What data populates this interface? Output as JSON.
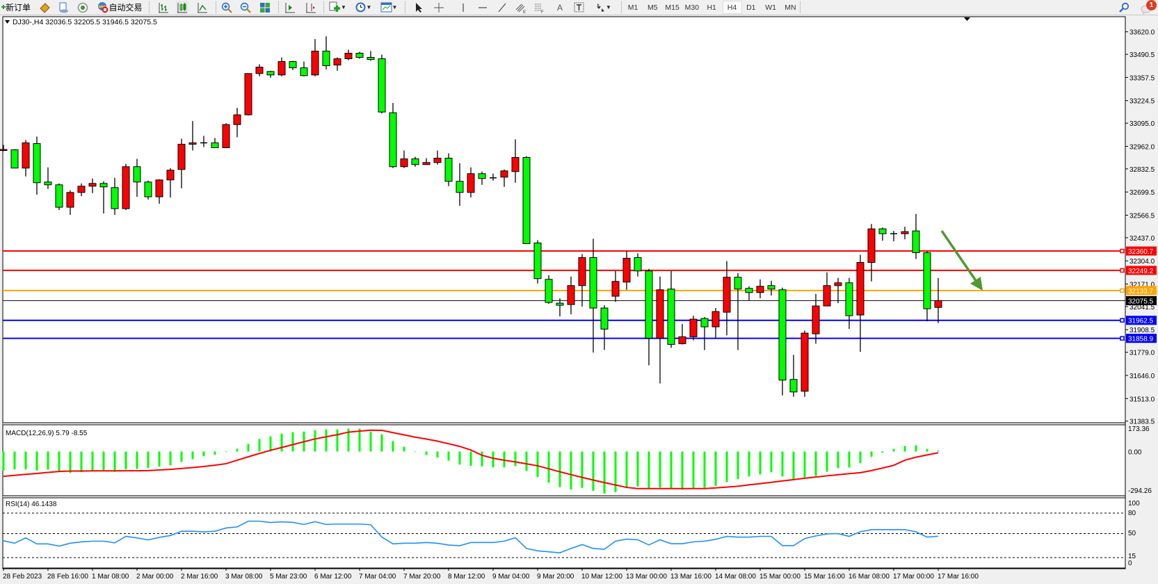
{
  "toolbar": {
    "new_order": "新订单",
    "auto_trading": "自动交易",
    "timeframes": [
      "M1",
      "M5",
      "M15",
      "M30",
      "H1",
      "H4",
      "D1",
      "W1",
      "MN"
    ],
    "selected_timeframe": "H4",
    "notification_count": "1",
    "icons": [
      "new-order-icon",
      "market-icon",
      "navigator-icon",
      "signals-icon",
      "auto-trading-icon",
      "bar-chart-icon",
      "candlestick-icon",
      "line-chart-icon",
      "zoom-in-icon",
      "zoom-out-icon",
      "tile-windows-icon",
      "auto-scroll-icon",
      "chart-shift-icon",
      "indicators-icon",
      "periods-icon",
      "templates-icon",
      "cursor-icon",
      "crosshair-icon",
      "vertical-line-icon",
      "horizontal-line-icon",
      "trendline-icon",
      "equidistant-channel-icon",
      "fibonacci-icon",
      "text-icon",
      "text-label-icon",
      "arrows-icon",
      "search-icon",
      "notifications-icon"
    ]
  },
  "chart_data": {
    "type": "candlestick",
    "header": "DJ30-,H4  32036.5 32205.5 31946.5 32075.5",
    "colors": {
      "up": "#ff0000",
      "down": "#00ff00",
      "outline": "#000000",
      "background": "#ffffff",
      "arrow": "#4f9a2f"
    },
    "ylim": [
      31383.5,
      33620.0
    ],
    "price_ticks": [
      "33620.0",
      "33490.5",
      "33357.5",
      "33224.5",
      "33095.0",
      "32962.0",
      "32832.5",
      "32699.5",
      "32566.5",
      "32437.0",
      "32304.0",
      "32171.0",
      "32041.5",
      "31908.5",
      "31779.0",
      "31646.0",
      "31513.0",
      "31383.5"
    ],
    "x_labels": [
      "28 Feb 2023",
      "28 Feb 16:00",
      "1 Mar 08:00",
      "2 Mar 00:00",
      "2 Mar 16:00",
      "3 Mar 08:00",
      "5 Mar 23:00",
      "6 Mar 12:00",
      "7 Mar 04:00",
      "7 Mar 20:00",
      "8 Mar 12:00",
      "9 Mar 04:00",
      "9 Mar 20:00",
      "10 Mar 12:00",
      "13 Mar 00:00",
      "13 Mar 16:00",
      "14 Mar 08:00",
      "15 Mar 00:00",
      "15 Mar 16:00",
      "16 Mar 08:00",
      "17 Mar 00:00",
      "17 Mar 16:00"
    ],
    "candles_ohlc": [
      [
        32938,
        32970,
        32934,
        32944
      ],
      [
        32942,
        32946,
        32837,
        32837
      ],
      [
        32837,
        32998,
        32789,
        32982
      ],
      [
        32978,
        33018,
        32684,
        32753
      ],
      [
        32757,
        32841,
        32717,
        32741
      ],
      [
        32741,
        32749,
        32596,
        32612
      ],
      [
        32612,
        32709,
        32568,
        32697
      ],
      [
        32697,
        32749,
        32676,
        32733
      ],
      [
        32733,
        32777,
        32693,
        32749
      ],
      [
        32749,
        32761,
        32576,
        32729
      ],
      [
        32725,
        32781,
        32568,
        32604
      ],
      [
        32604,
        32861,
        32596,
        32845
      ],
      [
        32845,
        32890,
        32672,
        32757
      ],
      [
        32757,
        32765,
        32656,
        32672
      ],
      [
        32672,
        32773,
        32632,
        32769
      ],
      [
        32769,
        32837,
        32668,
        32825
      ],
      [
        32829,
        33006,
        32721,
        32974
      ],
      [
        32974,
        33107,
        32938,
        32982
      ],
      [
        32982,
        33022,
        32958,
        32980
      ],
      [
        32982,
        33010,
        32954,
        32954
      ],
      [
        32954,
        33095,
        32954,
        33087
      ],
      [
        33087,
        33183,
        33014,
        33143
      ],
      [
        33143,
        33382,
        33139,
        33380
      ],
      [
        33380,
        33433,
        33364,
        33417
      ],
      [
        33392,
        33396,
        33356,
        33372
      ],
      [
        33372,
        33473,
        33364,
        33449
      ],
      [
        33449,
        33453,
        33400,
        33413
      ],
      [
        33413,
        33449,
        33364,
        33368
      ],
      [
        33372,
        33578,
        33364,
        33509
      ],
      [
        33509,
        33594,
        33404,
        33425
      ],
      [
        33429,
        33473,
        33396,
        33465
      ],
      [
        33465,
        33517,
        33457,
        33497
      ],
      [
        33497,
        33505,
        33465,
        33473
      ],
      [
        33473,
        33509,
        33453,
        33461
      ],
      [
        33465,
        33489,
        33151,
        33159
      ],
      [
        33155,
        33211,
        32837,
        32845
      ],
      [
        32845,
        32938,
        32837,
        32890
      ],
      [
        32890,
        32902,
        32845,
        32857
      ],
      [
        32857,
        32894,
        32857,
        32869
      ],
      [
        32869,
        32938,
        32857,
        32894
      ],
      [
        32894,
        32922,
        32733,
        32761
      ],
      [
        32761,
        32865,
        32620,
        32697
      ],
      [
        32697,
        32841,
        32668,
        32805
      ],
      [
        32805,
        32817,
        32741,
        32777
      ],
      [
        32781,
        32805,
        32765,
        32779
      ],
      [
        32785,
        32829,
        32729,
        32821
      ],
      [
        32817,
        33002,
        32753,
        32898
      ],
      [
        32898,
        32906,
        32403,
        32403
      ],
      [
        32407,
        32423,
        32174,
        32202
      ],
      [
        32198,
        32222,
        32057,
        32065
      ],
      [
        32061,
        32089,
        31985,
        32049
      ],
      [
        32053,
        32214,
        31997,
        32162
      ],
      [
        32162,
        32343,
        32041,
        32323
      ],
      [
        32323,
        32431,
        31777,
        32033
      ],
      [
        32033,
        32049,
        31793,
        31912
      ],
      [
        32101,
        32246,
        32069,
        32186
      ],
      [
        32182,
        32359,
        32138,
        32319
      ],
      [
        32323,
        32347,
        32214,
        32246
      ],
      [
        32246,
        32258,
        31704,
        31860
      ],
      [
        31860,
        32214,
        31600,
        32138
      ],
      [
        32142,
        32246,
        31804,
        31824
      ],
      [
        31828,
        31941,
        31824,
        31868
      ],
      [
        31868,
        31989,
        31848,
        31969
      ],
      [
        31973,
        31981,
        31792,
        31925
      ],
      [
        31925,
        32033,
        31860,
        32013
      ],
      [
        32009,
        32303,
        31876,
        32210
      ],
      [
        32210,
        32234,
        31792,
        32142
      ],
      [
        32146,
        32158,
        32077,
        32122
      ],
      [
        32122,
        32198,
        32089,
        32158
      ],
      [
        32162,
        32190,
        32105,
        32142
      ],
      [
        32138,
        32150,
        31531,
        31619
      ],
      [
        31623,
        31764,
        31523,
        31551
      ],
      [
        31555,
        31904,
        31523,
        31889
      ],
      [
        31885,
        32114,
        31828,
        32045
      ],
      [
        32045,
        32238,
        32045,
        32162
      ],
      [
        32162,
        32206,
        32061,
        32178
      ],
      [
        32178,
        32206,
        31913,
        31989
      ],
      [
        31993,
        32339,
        31781,
        32295
      ],
      [
        32295,
        32516,
        32186,
        32488
      ],
      [
        32488,
        32496,
        32420,
        32460
      ],
      [
        32460,
        32476,
        32416,
        32458
      ],
      [
        32460,
        32500,
        32428,
        32472
      ],
      [
        32476,
        32573,
        32315,
        32351
      ],
      [
        32351,
        32359,
        31957,
        32029
      ],
      [
        32036.5,
        32205.5,
        31946.5,
        32075.5
      ]
    ],
    "horizontal_lines": [
      {
        "price": 32360.7,
        "label": "32360.7",
        "color": "#ff0000"
      },
      {
        "price": 32249.2,
        "label": "32249.2",
        "color": "#ff0000"
      },
      {
        "price": 32133.7,
        "label": "32133.7",
        "color": "#ffa500"
      },
      {
        "price": 31962.5,
        "label": "31962.5",
        "color": "#0000ff"
      },
      {
        "price": 31858.9,
        "label": "31858.9",
        "color": "#0000ff"
      }
    ],
    "current_price": {
      "price": 32075.5,
      "label": "32075.5",
      "color": "#000000"
    },
    "macd": {
      "label": "MACD(12,26,9) 5.79 -8.55",
      "ylim": [
        -294.26,
        173.36
      ],
      "ticks": [
        "173.36",
        "0.00",
        "-294.26"
      ],
      "histogram_color": "#00ff00",
      "signal_color": "#ff0000",
      "main": [
        -127,
        -119,
        -119,
        -127,
        -121,
        -132,
        -142,
        -138,
        -132,
        -132,
        -135,
        -119,
        -116,
        -110,
        -101,
        -92,
        -69,
        -51,
        -31,
        -21,
        -3,
        18,
        51,
        83,
        101,
        119,
        129,
        133,
        142,
        147,
        147,
        152,
        152,
        133,
        115,
        69,
        32,
        0,
        -23,
        -40,
        -61,
        -87,
        -95,
        -99,
        -105,
        -105,
        -97,
        -129,
        -170,
        -207,
        -237,
        -253,
        -242,
        -262,
        -280,
        -271,
        -244,
        -233,
        -247,
        -240,
        -247,
        -255,
        -247,
        -241,
        -229,
        -203,
        -184,
        -166,
        -152,
        -138,
        -166,
        -191,
        -172,
        -162,
        -135,
        -110,
        -106,
        -77,
        -35,
        -8,
        17,
        37,
        41,
        17,
        5.79
      ],
      "signal": [
        -165,
        -159,
        -152,
        -146,
        -139,
        -133,
        -130,
        -130,
        -129,
        -129,
        -129,
        -128,
        -128,
        -127,
        -123,
        -119,
        -113,
        -107,
        -100,
        -91,
        -81,
        -58,
        -35,
        -13,
        8,
        27,
        46,
        65,
        84,
        98,
        112,
        129,
        136,
        142,
        141,
        126,
        111,
        96,
        83,
        69,
        52,
        34,
        10,
        -25,
        -45,
        -58,
        -69,
        -82,
        -95,
        -115,
        -135,
        -154,
        -172,
        -190,
        -207,
        -223,
        -239,
        -247,
        -247,
        -247,
        -247,
        -247,
        -247,
        -247,
        -242,
        -237,
        -231,
        -222,
        -214,
        -205,
        -196,
        -187,
        -178,
        -170,
        -162,
        -155,
        -147,
        -141,
        -127,
        -110,
        -92,
        -58,
        -38,
        -23,
        -8.55
      ]
    },
    "rsi": {
      "label": "RSI(14) 46.1438",
      "ylim": [
        0,
        100
      ],
      "ticks": [
        "100",
        "80",
        "50",
        "15",
        "0"
      ],
      "levels": [
        80,
        50,
        15
      ],
      "color": "#1e90ff",
      "values": [
        39.6,
        36,
        43.8,
        35,
        35,
        31.7,
        36,
        37.9,
        39,
        39,
        36.5,
        46,
        43.8,
        40.8,
        44.5,
        47.2,
        53.4,
        53.4,
        52.7,
        53.4,
        58.2,
        59.8,
        68.2,
        68.2,
        66.2,
        67.2,
        66.5,
        63.4,
        67.5,
        63.4,
        64,
        64,
        64,
        63,
        45,
        35,
        36,
        36,
        37,
        35.9,
        33.4,
        32.4,
        37,
        37,
        37,
        39,
        44,
        28.3,
        24.9,
        23.5,
        22,
        28.3,
        34,
        28.3,
        27.2,
        39,
        42,
        41,
        33.5,
        41,
        35.3,
        35.3,
        38,
        39,
        41.7,
        46,
        44.9,
        44.9,
        46,
        46,
        32.5,
        32.5,
        42.8,
        46.6,
        49.6,
        50,
        46,
        52.7,
        55.8,
        55.8,
        55.8,
        55.8,
        52.7,
        44.9,
        46.14
      ]
    }
  }
}
